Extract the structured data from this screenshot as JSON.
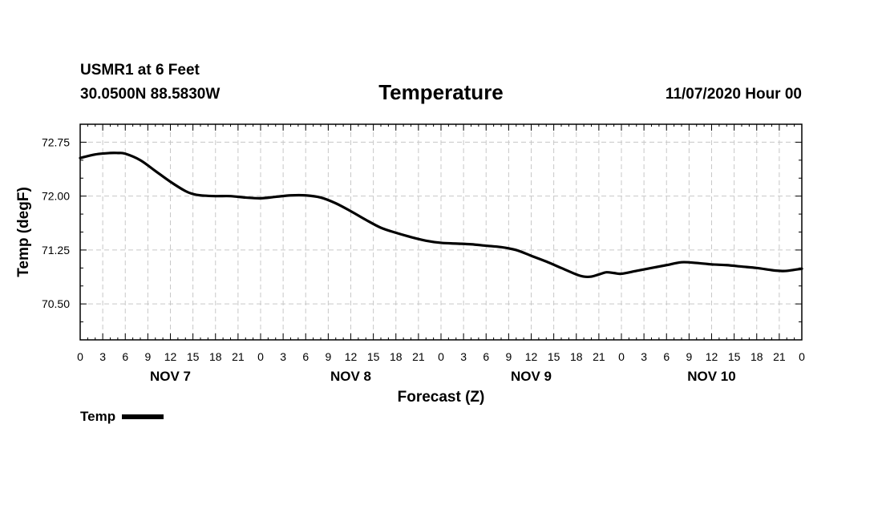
{
  "header": {
    "station": "USMR1 at 6 Feet",
    "coords": "30.0500N 88.5830W",
    "valid": "11/07/2020 Hour 00"
  },
  "chart_data": {
    "type": "line",
    "title": "Temperature",
    "xlabel": "Forecast (Z)",
    "ylabel": "Temp (degF)",
    "x_unit": "hours from 2020-11-07 00Z",
    "xlim": [
      0,
      96
    ],
    "ylim": [
      70.0,
      73.0
    ],
    "grid": true,
    "x_ticks": [
      0,
      3,
      6,
      9,
      12,
      15,
      18,
      21,
      24,
      27,
      30,
      33,
      36,
      39,
      42,
      45,
      48,
      51,
      54,
      57,
      60,
      63,
      66,
      69,
      72,
      75,
      78,
      81,
      84,
      87,
      90,
      93,
      96
    ],
    "x_tick_labels": [
      "0",
      "3",
      "6",
      "9",
      "12",
      "15",
      "18",
      "21",
      "0",
      "3",
      "6",
      "9",
      "12",
      "15",
      "18",
      "21",
      "0",
      "3",
      "6",
      "9",
      "12",
      "15",
      "18",
      "21",
      "0",
      "3",
      "6",
      "9",
      "12",
      "15",
      "18",
      "21",
      "0"
    ],
    "y_ticks": [
      70.5,
      71.25,
      72.0,
      72.75
    ],
    "y_tick_labels": [
      "70.50",
      "71.25",
      "72.00",
      "72.75"
    ],
    "day_labels": [
      {
        "label": "NOV 7",
        "x": 12
      },
      {
        "label": "NOV 8",
        "x": 36
      },
      {
        "label": "NOV 9",
        "x": 60
      },
      {
        "label": "NOV 10",
        "x": 84
      }
    ],
    "series": [
      {
        "name": "Temp",
        "color": "#000000",
        "x": [
          0,
          2,
          4,
          5,
          6,
          8,
          10,
          12,
          14,
          15,
          16,
          18,
          20,
          22,
          24,
          26,
          28,
          30,
          32,
          34,
          36,
          38,
          40,
          42,
          44,
          46,
          48,
          50,
          52,
          54,
          56,
          58,
          60,
          62,
          64,
          66,
          67,
          68,
          69,
          70,
          71,
          72,
          74,
          76,
          78,
          80,
          82,
          84,
          86,
          88,
          90,
          92,
          93,
          94,
          96
        ],
        "values": [
          72.53,
          72.58,
          72.6,
          72.6,
          72.59,
          72.5,
          72.35,
          72.2,
          72.07,
          72.03,
          72.01,
          72.0,
          72.0,
          71.98,
          71.97,
          71.99,
          72.01,
          72.01,
          71.98,
          71.9,
          71.79,
          71.67,
          71.56,
          71.49,
          71.43,
          71.38,
          71.35,
          71.34,
          71.33,
          71.31,
          71.29,
          71.25,
          71.17,
          71.09,
          71.0,
          70.91,
          70.88,
          70.88,
          70.91,
          70.94,
          70.93,
          70.92,
          70.96,
          71.0,
          71.04,
          71.08,
          71.07,
          71.05,
          71.04,
          71.02,
          71.0,
          70.97,
          70.96,
          70.96,
          70.99
        ]
      }
    ],
    "legend_position": "bottom-left"
  }
}
